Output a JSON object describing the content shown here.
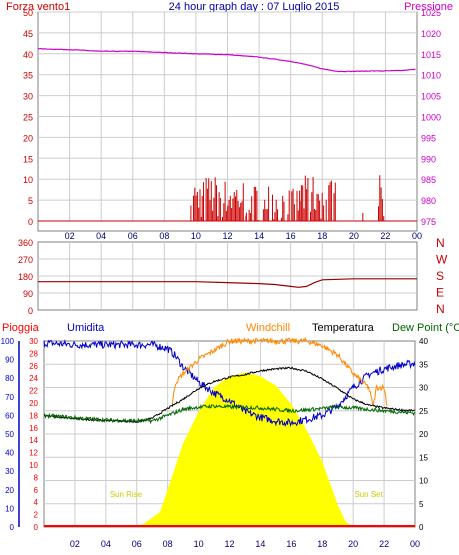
{
  "header": {
    "left_label": "Forza vento1",
    "title": "24 hour graph day : 07 Luglio 2015",
    "right_label": "Pressione"
  },
  "hours": [
    "02",
    "04",
    "06",
    "08",
    "10",
    "12",
    "14",
    "16",
    "18",
    "20",
    "22",
    "00"
  ],
  "colors": {
    "wind": "#cc0000",
    "pressure": "#cc00cc",
    "direction": "#990000",
    "humidity": "#0000cc",
    "windchill": "#ff8800",
    "temperature": "#000000",
    "dewpoint": "#006600",
    "rain": "#ff0000",
    "solar": "#ffff00",
    "grid": "#cccccc",
    "frame": "#808080"
  },
  "chart_data": [
    {
      "type": "bar",
      "name": "wind-pressure",
      "x_unit": "hour",
      "xlim": [
        0,
        24
      ],
      "left_axis": {
        "label": "Forza vento1",
        "ticks": [
          0,
          5,
          10,
          15,
          20,
          25,
          30,
          35,
          40,
          45,
          50
        ],
        "ylim": [
          0,
          50
        ]
      },
      "right_axis": {
        "label": "Pressione",
        "ticks": [
          975,
          980,
          985,
          990,
          995,
          1000,
          1005,
          1010,
          1015,
          1020,
          1025
        ],
        "ylim": [
          975,
          1025
        ]
      },
      "wind_bursts": [
        {
          "from": 9.6,
          "to": 10.4,
          "max": 10
        },
        {
          "from": 10.4,
          "to": 11.6,
          "max": 11
        },
        {
          "from": 11.6,
          "to": 13.2,
          "max": 10
        },
        {
          "from": 13.2,
          "to": 15.0,
          "max": 9
        },
        {
          "from": 15.0,
          "to": 16.6,
          "max": 8
        },
        {
          "from": 16.6,
          "to": 18.0,
          "max": 11
        },
        {
          "from": 18.0,
          "to": 19.2,
          "max": 10
        },
        {
          "from": 20.4,
          "to": 20.7,
          "max": 2
        },
        {
          "from": 21.4,
          "to": 21.9,
          "max": 11
        }
      ],
      "pressure": {
        "x": [
          0,
          2,
          4,
          6,
          8,
          10,
          12,
          14,
          16,
          17,
          18,
          19,
          20,
          21,
          22,
          23,
          24
        ],
        "values": [
          1016.2,
          1016.0,
          1015.6,
          1015.6,
          1015.3,
          1015.0,
          1014.8,
          1014.2,
          1013.2,
          1012.4,
          1011.4,
          1010.8,
          1010.8,
          1010.9,
          1010.9,
          1011.0,
          1011.3
        ]
      }
    },
    {
      "type": "line",
      "name": "wind-direction",
      "x_unit": "hour",
      "xlim": [
        0,
        24
      ],
      "left_axis": {
        "ticks": [
          0,
          90,
          180,
          270,
          360
        ],
        "ylim": [
          0,
          360
        ]
      },
      "right_axis": {
        "labels": [
          "N",
          "W",
          "S",
          "E",
          "N"
        ]
      },
      "series": {
        "x": [
          0,
          4,
          8,
          10,
          12,
          14,
          15,
          16,
          16.5,
          17,
          17.5,
          18,
          20,
          22,
          24
        ],
        "values": [
          150,
          150,
          150,
          150,
          145,
          140,
          135,
          125,
          120,
          125,
          145,
          160,
          165,
          165,
          165
        ]
      }
    },
    {
      "type": "line",
      "name": "temperature-humidity",
      "x_unit": "hour",
      "xlim": [
        0,
        24
      ],
      "top_labels": [
        "Pioggia",
        "Umidita",
        "Windchill",
        "Temperatura",
        "Dew Point (°C"
      ],
      "humidity_axis": {
        "ticks": [
          0,
          10,
          20,
          30,
          40,
          50,
          60,
          70,
          80,
          90,
          100
        ],
        "ylim": [
          0,
          100
        ]
      },
      "rain_axis": {
        "ticks": [
          0,
          2,
          4,
          6,
          8,
          10,
          12,
          14,
          16,
          18,
          20,
          22,
          24,
          26,
          28,
          30
        ],
        "ylim": [
          0,
          30
        ]
      },
      "temperature_axis": {
        "ticks": [
          0,
          5,
          10,
          15,
          20,
          25,
          30,
          35,
          40
        ],
        "ylim": [
          0,
          40
        ]
      },
      "annotations": [
        {
          "text": "Sun Rise",
          "hour": 5.3
        },
        {
          "text": "Sun Set",
          "hour": 21.0
        }
      ],
      "humidity": {
        "x": [
          0,
          2,
          4,
          6,
          7,
          8,
          8.5,
          9,
          10,
          11,
          12,
          13,
          14,
          15,
          16,
          17,
          18,
          19,
          19.5,
          20,
          21,
          22,
          23,
          24
        ],
        "values": [
          99,
          98,
          98,
          98,
          98,
          96,
          92,
          86,
          78,
          72,
          68,
          62,
          59,
          57,
          56,
          58,
          60,
          65,
          70,
          75,
          82,
          85,
          87,
          88
        ]
      },
      "windchill": {
        "x": [
          8.3,
          8.5,
          9,
          10,
          11,
          12,
          13,
          14,
          15,
          16,
          17,
          18,
          19,
          20,
          21,
          21.3,
          21.5,
          22,
          22.2
        ],
        "values": [
          26.5,
          31,
          33,
          36,
          38,
          40,
          40,
          40,
          40,
          40,
          40,
          39,
          37,
          33,
          30,
          26,
          30,
          30,
          26
        ]
      },
      "temperature": {
        "x": [
          0,
          1,
          2,
          3,
          4,
          5,
          6,
          7,
          8,
          9,
          10,
          11,
          12,
          13,
          14,
          15,
          16,
          17,
          18,
          19,
          20,
          21,
          22,
          23,
          24
        ],
        "values": [
          24.0,
          23.6,
          23.3,
          23.1,
          22.9,
          22.8,
          22.6,
          23.4,
          25.5,
          27.5,
          29.8,
          31.3,
          32.2,
          32.8,
          33.6,
          34.0,
          34.2,
          33.5,
          31.8,
          29.8,
          27.5,
          26.2,
          25.6,
          25.2,
          25.0
        ]
      },
      "dewpoint": {
        "x": [
          0,
          4,
          7,
          8,
          9,
          10,
          11,
          12,
          13,
          14,
          15,
          16,
          17,
          18,
          19,
          20,
          22,
          24
        ],
        "values": [
          24.0,
          23.0,
          22.8,
          24.0,
          25.3,
          25.8,
          26.0,
          25.8,
          25.8,
          25.6,
          25.3,
          25.0,
          25.2,
          25.5,
          25.8,
          25.6,
          25.0,
          24.5
        ]
      },
      "solar": {
        "x": [
          6.0,
          6.5,
          7.0,
          7.5,
          8.0,
          9,
          10,
          11,
          12,
          13,
          14,
          15,
          16,
          17,
          18,
          19,
          19.5,
          20.0
        ],
        "values": [
          0,
          2,
          5,
          8,
          20,
          45,
          62,
          75,
          81,
          83,
          81,
          76,
          66,
          52,
          35,
          12,
          3,
          0
        ]
      },
      "rain": {
        "x": [
          0,
          24
        ],
        "values": [
          0,
          0
        ]
      }
    }
  ]
}
